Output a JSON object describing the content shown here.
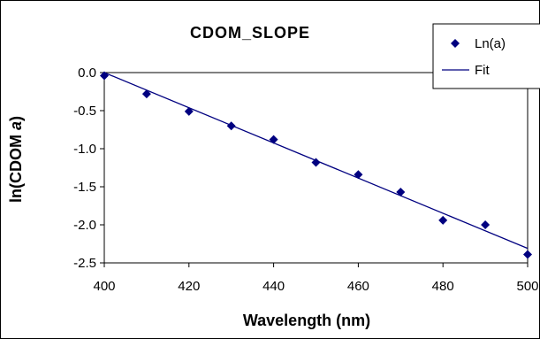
{
  "chart_data": {
    "type": "scatter",
    "title": "CDOM_SLOPE",
    "xlabel": "Wavelength (nm)",
    "ylabel": "ln(CDOM a)",
    "ylabel_main": "ln(CDOM ",
    "ylabel_italic": "a",
    "ylabel_close": ")",
    "xlim": [
      400,
      500
    ],
    "ylim": [
      -2.5,
      0.0
    ],
    "x_ticks": [
      "400",
      "420",
      "440",
      "460",
      "480",
      "500"
    ],
    "y_ticks": [
      "0.0",
      "-0.5",
      "-1.0",
      "-1.5",
      "-2.0",
      "-2.5"
    ],
    "grid": false,
    "legend_position": "top-right",
    "series": [
      {
        "name": "Ln(a)",
        "type": "scatter",
        "color": "#000080",
        "x": [
          400,
          410,
          420,
          430,
          440,
          450,
          460,
          470,
          480,
          490,
          500
        ],
        "y": [
          -0.04,
          -0.28,
          -0.51,
          -0.7,
          -0.88,
          -1.18,
          -1.34,
          -1.57,
          -1.94,
          -2.0,
          -2.39
        ]
      },
      {
        "name": "Fit",
        "type": "line",
        "color": "#000080",
        "x": [
          400,
          500
        ],
        "y": [
          0.0,
          -2.31
        ]
      }
    ]
  }
}
